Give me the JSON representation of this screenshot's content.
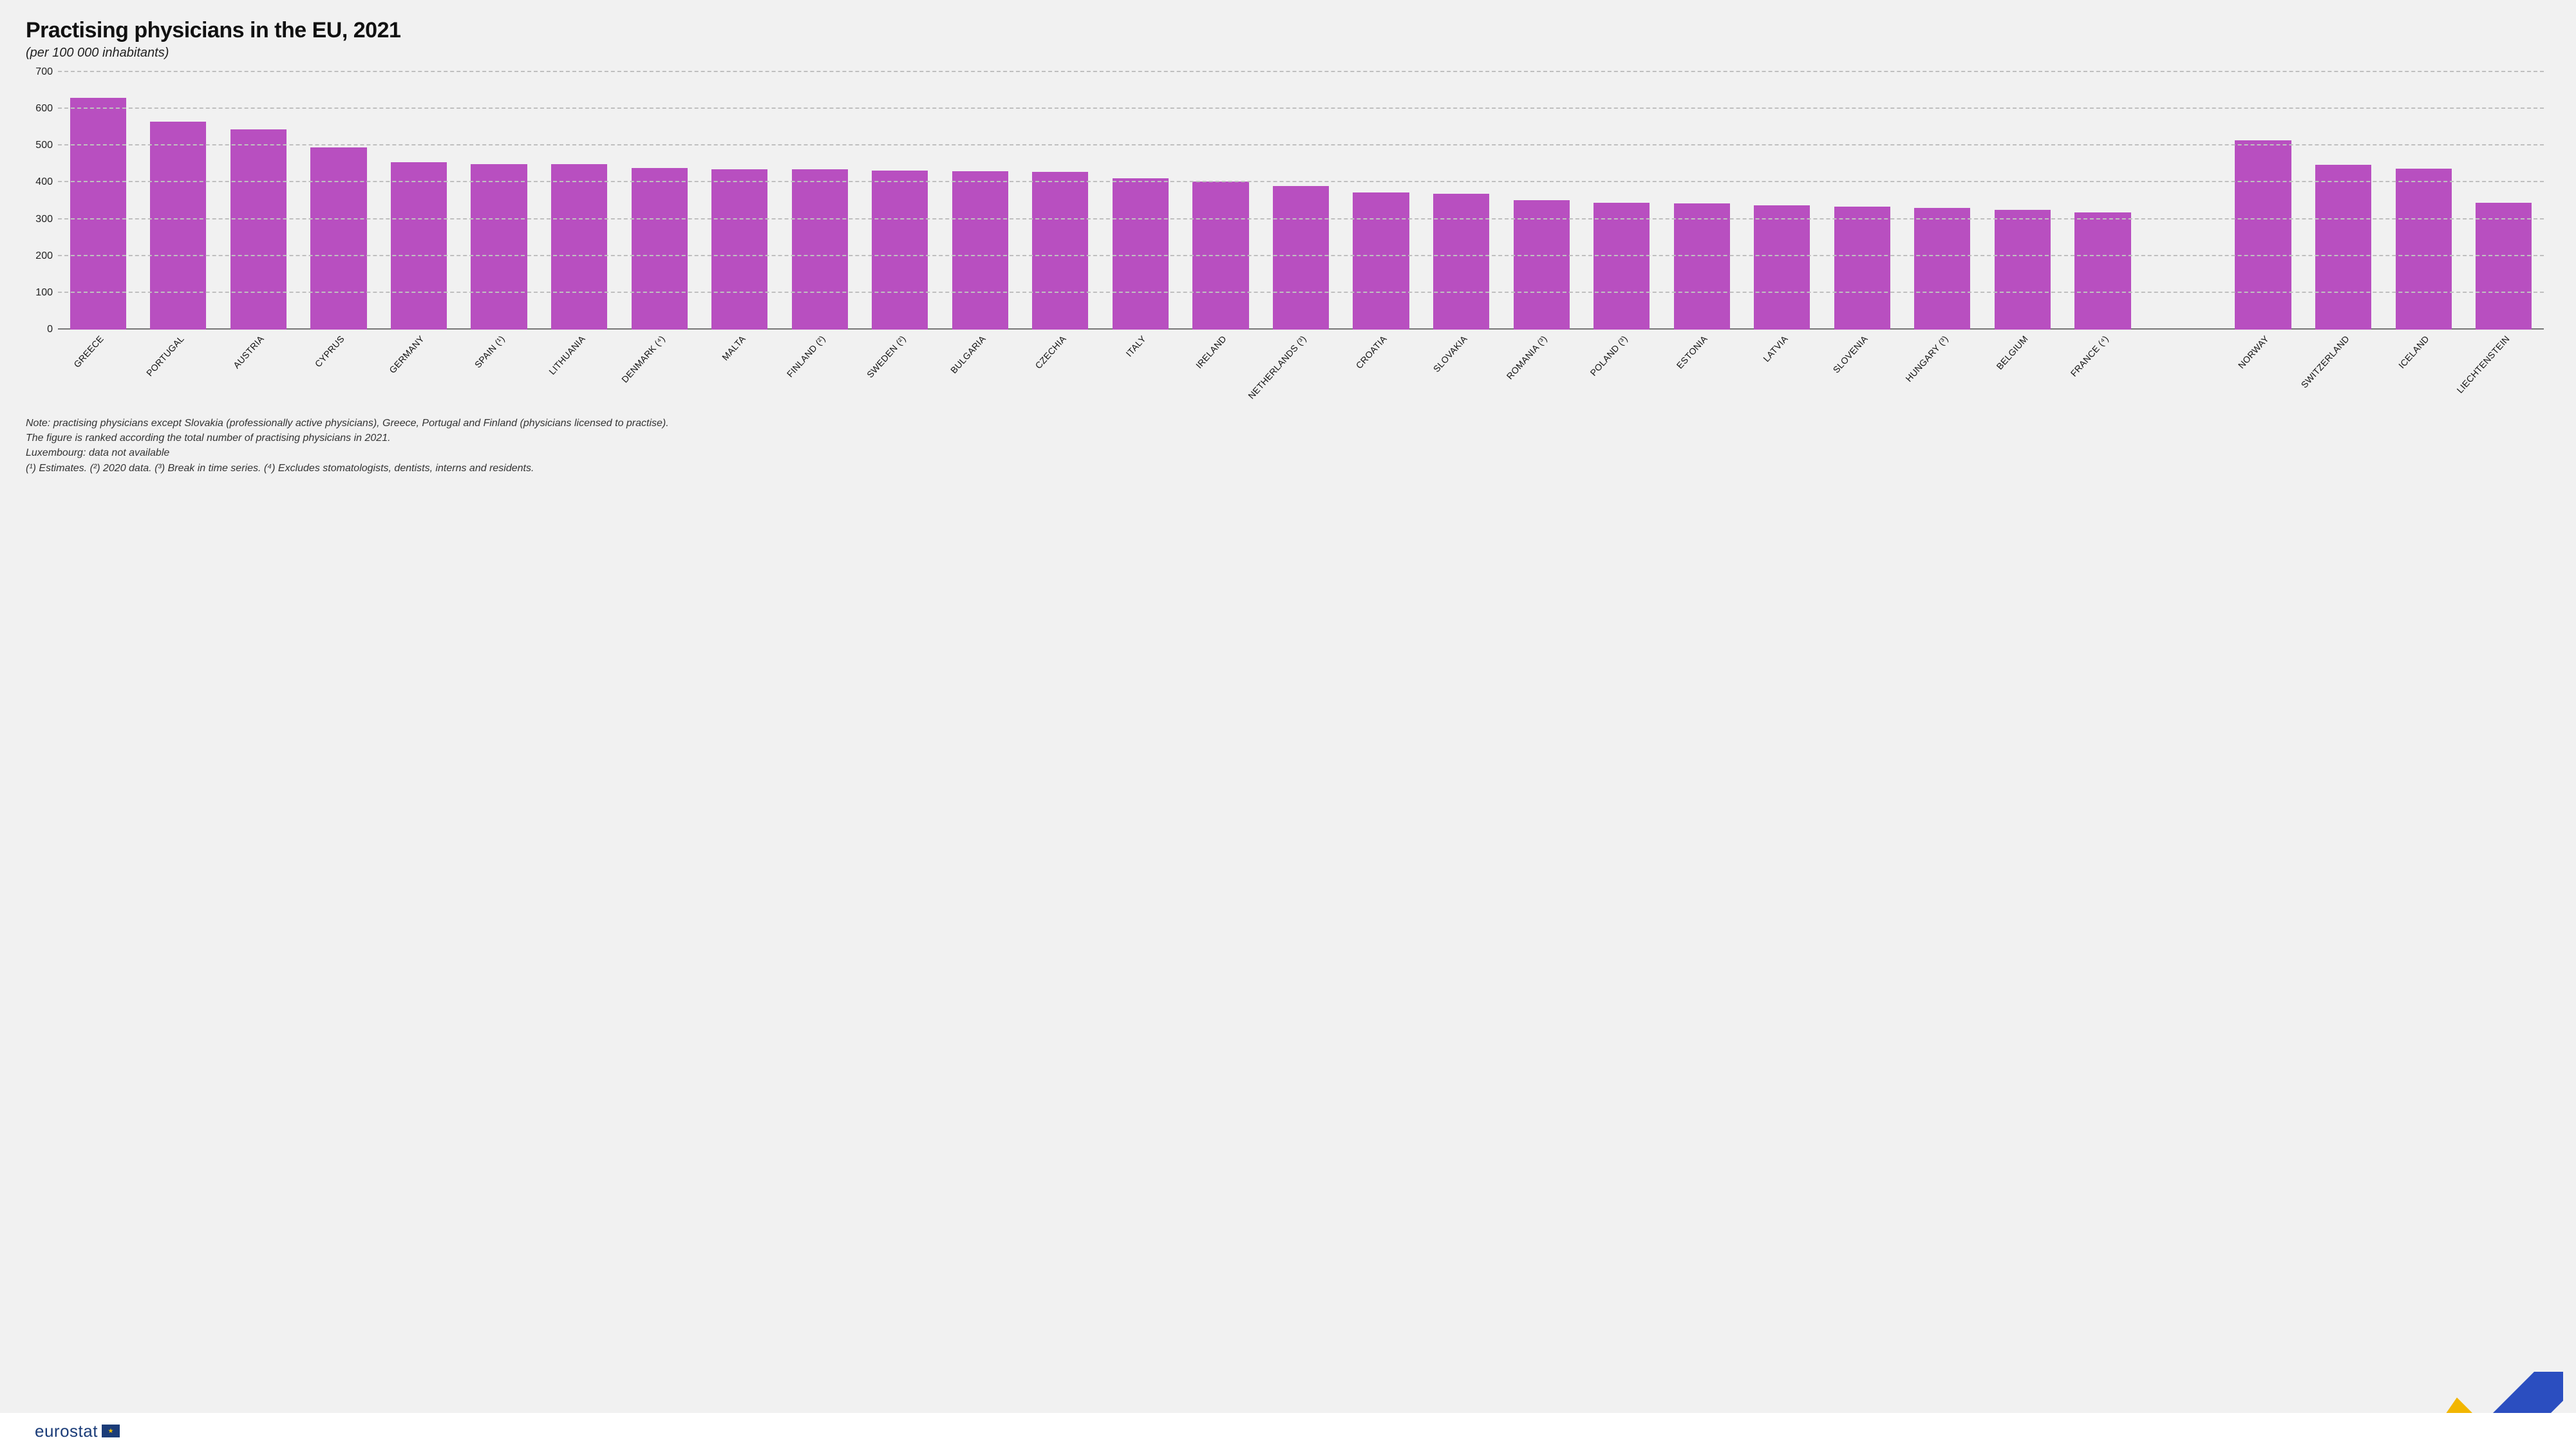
{
  "title": "Practising physicians in the EU, 2021",
  "subtitle": "(per 100 000 inhabitants)",
  "chart": {
    "type": "bar",
    "ylim": [
      0,
      700
    ],
    "ytick_step": 100,
    "yticks": [
      0,
      100,
      200,
      300,
      400,
      500,
      600,
      700
    ],
    "bar_color": "#b84fc0",
    "grid_color": "#bfbfbf",
    "baseline_color": "#777777",
    "background_color": "#f1f1f1",
    "bar_width_ratio": 0.7,
    "label_fontsize": 14,
    "ytick_fontsize": 16,
    "label_rotation_deg": -48,
    "group_gap_after_index": 26,
    "categories": [
      "GREECE",
      "PORTUGAL",
      "AUSTRIA",
      "CYPRUS",
      "GERMANY",
      "SPAIN (¹)",
      "LITHUANIA",
      "DENMARK (⁴)",
      "MALTA",
      "FINLAND (²)",
      "SWEDEN (²)",
      "BULGARIA",
      "CZECHIA",
      "ITALY",
      "IRELAND",
      "NETHERLANDS (³)",
      "CROATIA",
      "SLOVAKIA",
      "ROMANIA (³)",
      "POLAND (³)",
      "ESTONIA",
      "LATVIA",
      "SLOVENIA",
      "HUNGARY (³)",
      "BELGIUM",
      "FRANCE (⁴)",
      "NORWAY",
      "SWITZERLAND",
      "ICELAND",
      "LIECHTENSTEIN"
    ],
    "values": [
      630,
      565,
      545,
      495,
      455,
      450,
      450,
      440,
      435,
      435,
      432,
      430,
      428,
      412,
      402,
      390,
      372,
      370,
      352,
      345,
      343,
      337,
      335,
      330,
      325,
      318,
      515,
      448,
      438,
      345
    ]
  },
  "notes": {
    "line1": "Note: practising physicians except Slovakia (professionally active physicians), Greece, Portugal and Finland (physicians licensed to practise).",
    "line2": "The figure is ranked according the total number of practising physicians in 2021.",
    "line3": "Luxembourg: data not available",
    "line4": "(¹) Estimates. (²) 2020 data. (³) Break in time series. (⁴) Excludes stomatologists, dentists, interns and residents."
  },
  "brand": {
    "name": "eurostat",
    "flag_glyph": "★"
  },
  "logo_colors": {
    "yellow": "#f2b600",
    "grey": "#c9c9c9",
    "blue": "#2b4ec0"
  }
}
